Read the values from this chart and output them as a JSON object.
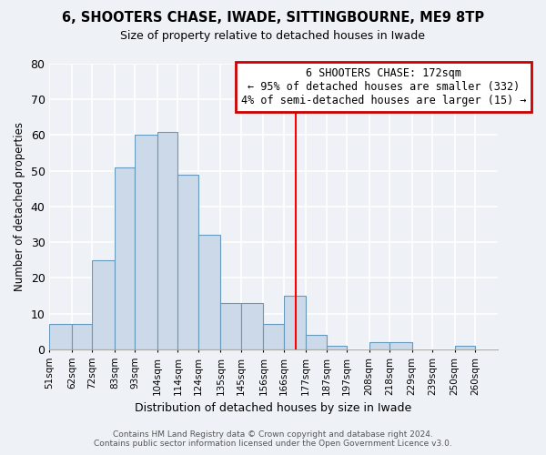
{
  "title": "6, SHOOTERS CHASE, IWADE, SITTINGBOURNE, ME9 8TP",
  "subtitle": "Size of property relative to detached houses in Iwade",
  "xlabel": "Distribution of detached houses by size in Iwade",
  "ylabel": "Number of detached properties",
  "bar_labels": [
    "51sqm",
    "62sqm",
    "72sqm",
    "83sqm",
    "93sqm",
    "104sqm",
    "114sqm",
    "124sqm",
    "135sqm",
    "145sqm",
    "156sqm",
    "166sqm",
    "177sqm",
    "187sqm",
    "197sqm",
    "208sqm",
    "218sqm",
    "229sqm",
    "239sqm",
    "250sqm",
    "260sqm"
  ],
  "bar_values": [
    7,
    7,
    25,
    51,
    60,
    61,
    49,
    32,
    13,
    13,
    7,
    15,
    4,
    1,
    0,
    2,
    2,
    0,
    0,
    1,
    0
  ],
  "bar_color": "#ccd9e8",
  "bar_edge_color": "#6699bb",
  "property_line_x": 172,
  "annotation_title": "6 SHOOTERS CHASE: 172sqm",
  "annotation_line1": "← 95% of detached houses are smaller (332)",
  "annotation_line2": "4% of semi-detached houses are larger (15) →",
  "ylim": [
    0,
    80
  ],
  "yticks": [
    0,
    10,
    20,
    30,
    40,
    50,
    60,
    70,
    80
  ],
  "footer_line1": "Contains HM Land Registry data © Crown copyright and database right 2024.",
  "footer_line2": "Contains public sector information licensed under the Open Government Licence v3.0.",
  "bg_color": "#eef2f7",
  "plot_bg_color": "#eef2f7",
  "grid_color": "#ffffff",
  "bin_edges": [
    51,
    62,
    72,
    83,
    93,
    104,
    114,
    124,
    135,
    145,
    156,
    166,
    177,
    187,
    197,
    208,
    218,
    229,
    239,
    250,
    260,
    271
  ]
}
